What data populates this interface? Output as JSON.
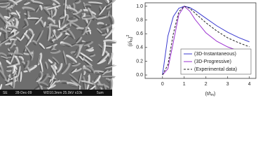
{
  "sem_image": {
    "detector": "SE",
    "date": "28-Dec-09",
    "settings": "WD10.3mm 25.0kV x10k",
    "scale": "5um"
  },
  "chart_data": {
    "type": "line",
    "ylabel": {
      "text": "(i/i",
      "sub": "m",
      "close": ")",
      "sup": "2"
    },
    "xlabel": {
      "text": "(t/t",
      "sub": "m",
      "close": ")"
    },
    "x": [
      0,
      0.25,
      0.5,
      0.75,
      1,
      1.25,
      1.5,
      2,
      2.5,
      3,
      3.5,
      4
    ],
    "series": [
      {
        "name": "(3D-Instantaneous)",
        "color": "#3a3ad0",
        "dash": false,
        "values": [
          0,
          0.568,
          0.85,
          0.97,
          1.0,
          0.981,
          0.937,
          0.825,
          0.715,
          0.622,
          0.545,
          0.482
        ]
      },
      {
        "name": "(3D-Progressive)",
        "color": "#9a2fd0",
        "dash": false,
        "values": [
          0,
          0.091,
          0.479,
          0.874,
          1.0,
          0.93,
          0.808,
          0.613,
          0.49,
          0.408,
          0.35,
          0.306
        ]
      },
      {
        "name": "(Experimental data)",
        "color": "#222222",
        "dash": true,
        "values": [
          0,
          0.15,
          0.6,
          0.92,
          1.0,
          0.97,
          0.9,
          0.76,
          0.64,
          0.54,
          0.47,
          0.41
        ]
      }
    ],
    "xlim": [
      -0.8,
      4.3
    ],
    "ylim": [
      -0.05,
      1.05
    ],
    "xticks": [
      0,
      1,
      2,
      3,
      4
    ],
    "yticks": [
      {
        "value": 0,
        "label": "0.0"
      },
      0.2,
      0.4,
      0.6,
      0.8,
      {
        "value": 1,
        "label": "1.0"
      }
    ],
    "legend": "lower-right"
  }
}
